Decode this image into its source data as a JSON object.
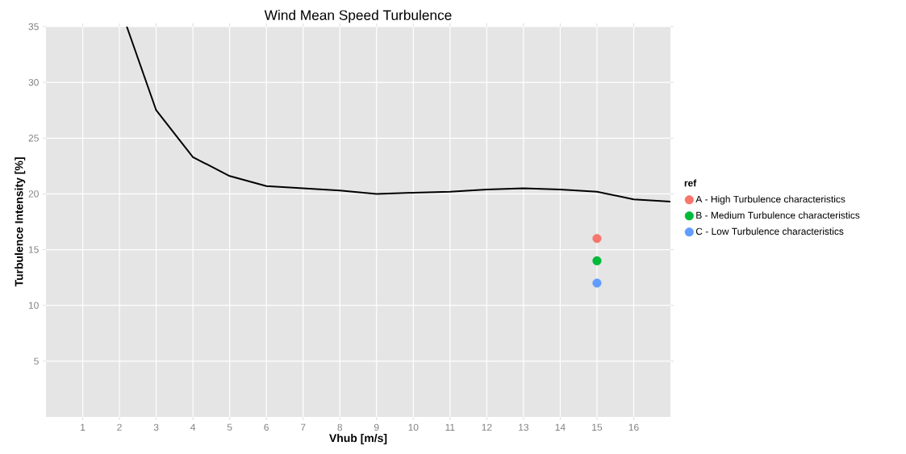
{
  "chart_data": {
    "type": "line",
    "title": "Wind Mean Speed Turbulence",
    "xlabel": "Vhub [m/s]",
    "ylabel": "Turbulence Intensity [%]",
    "legend_title": "ref",
    "xlim": [
      0,
      17
    ],
    "ylim": [
      0,
      35
    ],
    "xticks": [
      1,
      2,
      3,
      4,
      5,
      6,
      7,
      8,
      9,
      10,
      11,
      12,
      13,
      14,
      15,
      16
    ],
    "yticks": [
      5,
      10,
      15,
      20,
      25,
      30,
      35
    ],
    "grid": true,
    "legend": "right",
    "series": [
      {
        "color": "#000000",
        "marker": "none",
        "line_style": "solid",
        "x": [
          2.2,
          3,
          4,
          5,
          6,
          7,
          8,
          9,
          10,
          11,
          12,
          13,
          14,
          15,
          16,
          17
        ],
        "values": [
          35,
          27.5,
          23.3,
          21.6,
          20.7,
          20.5,
          20.3,
          20.0,
          20.1,
          20.2,
          20.4,
          20.5,
          20.4,
          20.2,
          19.5,
          19.3
        ]
      },
      {
        "type": "scatter",
        "name": "A - High Turbulence characteristics",
        "color": "#f8766d",
        "marker": "circle",
        "x": [
          15
        ],
        "values": [
          16
        ]
      },
      {
        "type": "scatter",
        "name": "B - Medium Turbulence characteristics",
        "color": "#00ba38",
        "marker": "circle",
        "x": [
          15
        ],
        "values": [
          14
        ]
      },
      {
        "type": "scatter",
        "name": "C - Low Turbulence characteristics",
        "color": "#619cff",
        "marker": "circle",
        "x": [
          15
        ],
        "values": [
          12
        ]
      }
    ]
  }
}
